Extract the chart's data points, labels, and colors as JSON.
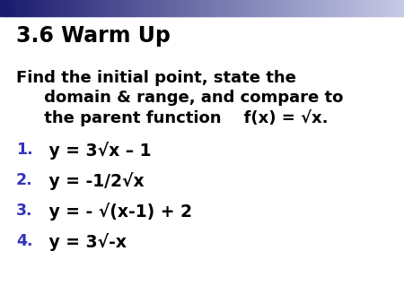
{
  "title": "3.6 Warm Up",
  "subtitle_line1": "Find the initial point, state the",
  "subtitle_line2": "     domain & range, and compare to",
  "subtitle_line3": "     the parent function    f(x) = √x.",
  "items": [
    {
      "num": "1.",
      "text": " y = 3√x – 1"
    },
    {
      "num": "2.",
      "text": " y = -1/2√x"
    },
    {
      "num": "3.",
      "text": " y = - √(x-1) + 2"
    },
    {
      "num": "4.",
      "text": " y = 3√-x"
    }
  ],
  "num_color": "#3333bb",
  "title_color": "#000000",
  "text_color": "#000000",
  "bg_color": "#ffffff",
  "header_gradient_left": "#1a1a6e",
  "header_gradient_right": "#c8cce8",
  "title_fontsize": 17,
  "subtitle_fontsize": 13,
  "item_fontsize": 13.5
}
